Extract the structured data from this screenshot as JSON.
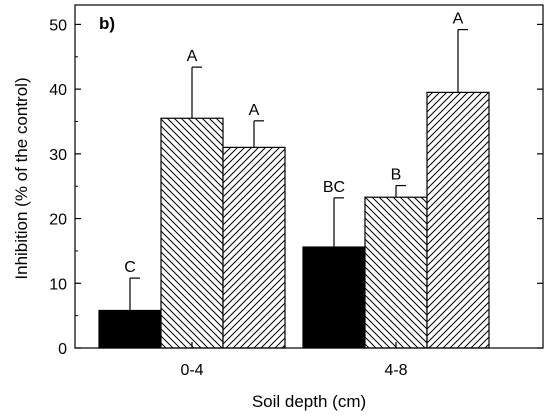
{
  "chart_data": {
    "type": "bar",
    "panel_label": "b)",
    "xlabel": "Soil depth (cm)",
    "ylabel": "Inhibition (% of the control)",
    "ylim": [
      0,
      53
    ],
    "yticks": [
      0,
      10,
      20,
      30,
      40,
      50
    ],
    "categories": [
      "0-4",
      "4-8"
    ],
    "grid": false,
    "series": [
      {
        "fill": "solid",
        "color": "#000000",
        "values": [
          5.8,
          15.6
        ],
        "errors": [
          5.0,
          7.6
        ],
        "labels": [
          "C",
          "BC"
        ]
      },
      {
        "fill": "hatch-backslash",
        "color": "#000000",
        "values": [
          35.5,
          23.3
        ],
        "errors": [
          7.9,
          1.8
        ],
        "labels": [
          "A",
          "B"
        ]
      },
      {
        "fill": "hatch-slash",
        "color": "#000000",
        "values": [
          31.0,
          39.5
        ],
        "errors": [
          4.1,
          9.7
        ],
        "labels": [
          "A",
          "A"
        ]
      }
    ]
  }
}
